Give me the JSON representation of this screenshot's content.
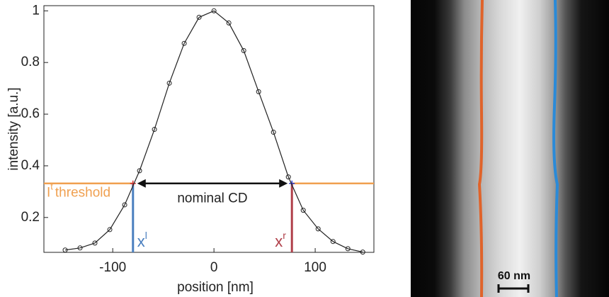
{
  "chart_data": {
    "type": "line",
    "x_label": "position [nm]",
    "y_label": "intensity [a.u.]",
    "x": [
      -147,
      -132.3,
      -117.6,
      -102.9,
      -88.2,
      -73.5,
      -58.8,
      -44.1,
      -29.4,
      -14.7,
      0,
      14.7,
      29.4,
      44.1,
      58.8,
      73.5,
      88.2,
      102.9,
      117.6,
      132.3,
      147
    ],
    "values": [
      0.074,
      0.082,
      0.101,
      0.153,
      0.249,
      0.381,
      0.541,
      0.72,
      0.874,
      0.975,
      1.0,
      0.953,
      0.846,
      0.687,
      0.53,
      0.357,
      0.228,
      0.156,
      0.107,
      0.079,
      0.066
    ],
    "color": "#222222",
    "xlim": [
      -168,
      158
    ],
    "ylim": [
      0.065,
      1.02
    ],
    "xticks": [
      -100,
      0,
      100
    ],
    "yticks": [
      0.2,
      0.4,
      0.6,
      0.8,
      1
    ],
    "threshold": {
      "value": 0.332,
      "symbol": "I",
      "superscript": "t",
      "label": "threshold",
      "color": "#f0a050"
    },
    "edges": [
      {
        "x": -80,
        "symbol": "x",
        "superscript": "l",
        "color": "#4a7fbf",
        "marker_color": "#d03030"
      },
      {
        "x": 77,
        "symbol": "x",
        "superscript": "r",
        "color": "#b0404a",
        "marker_color": "#3040d0"
      }
    ],
    "width_label": "nominal CD"
  },
  "image_panel": {
    "scale_bar_label": "60 nm"
  }
}
